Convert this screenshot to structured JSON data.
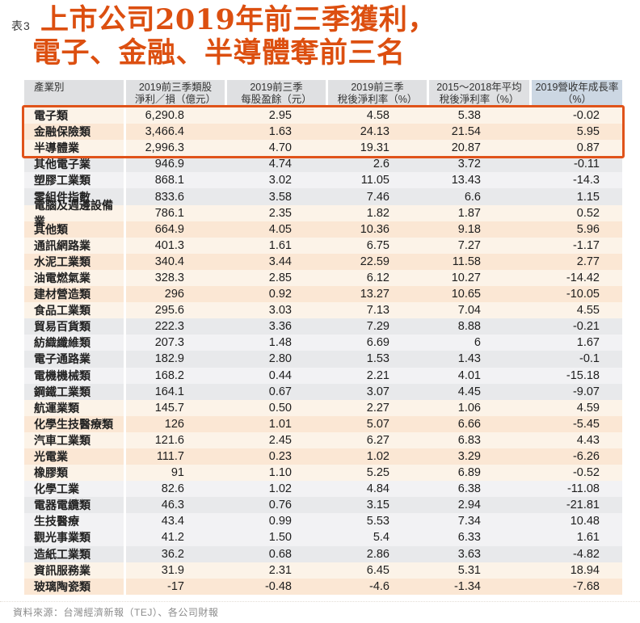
{
  "doc": {
    "table_label": "表3",
    "title_line1": "上市公司2019年前三季獲利，",
    "title_line2": "電子、金融、半導體奪前三名"
  },
  "colors": {
    "title_accent": "#dc4f10",
    "highlight_border": "#e0531a",
    "header_bg": "#dfe0e2",
    "header_last_col_bg": "#ccd7e3",
    "row_tones": {
      "cream": "#fcf3e8",
      "peach": "#fbe7d4",
      "gray": "#e8e9eb",
      "lightgray": "#f2f2f4"
    }
  },
  "chart_data": {
    "type": "table",
    "title": "上市公司2019年前三季獲利，電子、金融、半導體奪前三名",
    "columns": [
      {
        "lines": [
          "產業別"
        ]
      },
      {
        "lines": [
          "2019前三季類股",
          "淨利／損（億元）"
        ]
      },
      {
        "lines": [
          "2019前三季",
          "每股盈餘（元）"
        ]
      },
      {
        "lines": [
          "2019前三季",
          "稅後淨利率（%）"
        ]
      },
      {
        "lines": [
          "2015～2018年平均",
          "稅後淨利率（%）"
        ]
      },
      {
        "lines": [
          "2019營收年成長率",
          "（%）"
        ]
      }
    ],
    "highlight_note": "前三名（電子類、金融保險類、半導體業）以橘色框標示",
    "rows": [
      {
        "name": "電子類",
        "values": [
          "6,290.8",
          "2.95",
          "4.58",
          "5.38",
          "-0.02"
        ],
        "tone": "cream",
        "highlighted": true
      },
      {
        "name": "金融保險類",
        "values": [
          "3,466.4",
          "1.63",
          "24.13",
          "21.54",
          "5.95"
        ],
        "tone": "peach",
        "highlighted": true
      },
      {
        "name": "半導體業",
        "values": [
          "2,996.3",
          "4.70",
          "19.31",
          "20.87",
          "0.87"
        ],
        "tone": "cream",
        "highlighted": true
      },
      {
        "name": "其他電子業",
        "values": [
          "946.9",
          "4.74",
          "2.6",
          "3.72",
          "-0.11"
        ],
        "tone": "gray",
        "highlighted": false
      },
      {
        "name": "塑膠工業類",
        "values": [
          "868.1",
          "3.02",
          "11.05",
          "13.43",
          "-14.3"
        ],
        "tone": "lightgray",
        "highlighted": false
      },
      {
        "name": "零組件指數",
        "values": [
          "833.6",
          "3.58",
          "7.46",
          "6.6",
          "1.15"
        ],
        "tone": "gray",
        "highlighted": false
      },
      {
        "name": "電腦及週邊設備業",
        "values": [
          "786.1",
          "2.35",
          "1.82",
          "1.87",
          "0.52"
        ],
        "tone": "cream",
        "highlighted": false
      },
      {
        "name": "其他類",
        "values": [
          "664.9",
          "4.05",
          "10.36",
          "9.18",
          "5.96"
        ],
        "tone": "peach",
        "highlighted": false
      },
      {
        "name": "通訊網路業",
        "values": [
          "401.3",
          "1.61",
          "6.75",
          "7.27",
          "-1.17"
        ],
        "tone": "cream",
        "highlighted": false
      },
      {
        "name": "水泥工業類",
        "values": [
          "340.4",
          "3.44",
          "22.59",
          "11.58",
          "2.77"
        ],
        "tone": "peach",
        "highlighted": false
      },
      {
        "name": "油電燃氣業",
        "values": [
          "328.3",
          "2.85",
          "6.12",
          "10.27",
          "-14.42"
        ],
        "tone": "cream",
        "highlighted": false
      },
      {
        "name": "建材營造類",
        "values": [
          "296",
          "0.92",
          "13.27",
          "10.65",
          "-10.05"
        ],
        "tone": "peach",
        "highlighted": false
      },
      {
        "name": "食品工業類",
        "values": [
          "295.6",
          "3.03",
          "7.13",
          "7.04",
          "4.55"
        ],
        "tone": "cream",
        "highlighted": false
      },
      {
        "name": "貿易百貨類",
        "values": [
          "222.3",
          "3.36",
          "7.29",
          "8.88",
          "-0.21"
        ],
        "tone": "gray",
        "highlighted": false
      },
      {
        "name": "紡織纖維類",
        "values": [
          "207.3",
          "1.48",
          "6.69",
          "6",
          "1.67"
        ],
        "tone": "lightgray",
        "highlighted": false
      },
      {
        "name": "電子通路業",
        "values": [
          "182.9",
          "2.80",
          "1.53",
          "1.43",
          "-0.1"
        ],
        "tone": "gray",
        "highlighted": false
      },
      {
        "name": "電機機械類",
        "values": [
          "168.2",
          "0.44",
          "2.21",
          "4.01",
          "-15.18"
        ],
        "tone": "lightgray",
        "highlighted": false
      },
      {
        "name": "鋼鐵工業類",
        "values": [
          "164.1",
          "0.67",
          "3.07",
          "4.45",
          "-9.07"
        ],
        "tone": "gray",
        "highlighted": false
      },
      {
        "name": "航運業類",
        "values": [
          "145.7",
          "0.50",
          "2.27",
          "1.06",
          "4.59"
        ],
        "tone": "cream",
        "highlighted": false
      },
      {
        "name": "化學生技醫療類",
        "values": [
          "126",
          "1.01",
          "5.07",
          "6.66",
          "-5.45"
        ],
        "tone": "peach",
        "highlighted": false
      },
      {
        "name": "汽車工業類",
        "values": [
          "121.6",
          "2.45",
          "6.27",
          "6.83",
          "4.43"
        ],
        "tone": "cream",
        "highlighted": false
      },
      {
        "name": "光電業",
        "values": [
          "111.7",
          "0.23",
          "1.02",
          "3.29",
          "-6.26"
        ],
        "tone": "peach",
        "highlighted": false
      },
      {
        "name": "橡膠類",
        "values": [
          "91",
          "1.10",
          "5.25",
          "6.89",
          "-0.52"
        ],
        "tone": "cream",
        "highlighted": false
      },
      {
        "name": "化學工業",
        "values": [
          "82.6",
          "1.02",
          "4.84",
          "6.38",
          "-11.08"
        ],
        "tone": "lightgray",
        "highlighted": false
      },
      {
        "name": "電器電纜類",
        "values": [
          "46.3",
          "0.76",
          "3.15",
          "2.94",
          "-21.81"
        ],
        "tone": "gray",
        "highlighted": false
      },
      {
        "name": "生技醫療",
        "values": [
          "43.4",
          "0.99",
          "5.53",
          "7.34",
          "10.48"
        ],
        "tone": "lightgray",
        "highlighted": false
      },
      {
        "name": "觀光事業類",
        "values": [
          "41.2",
          "1.50",
          "5.4",
          "6.33",
          "1.61"
        ],
        "tone": "lightgray",
        "highlighted": false
      },
      {
        "name": "造紙工業類",
        "values": [
          "36.2",
          "0.68",
          "2.86",
          "3.63",
          "-4.82"
        ],
        "tone": "gray",
        "highlighted": false
      },
      {
        "name": "資訊服務業",
        "values": [
          "31.9",
          "2.31",
          "6.45",
          "5.31",
          "18.94"
        ],
        "tone": "cream",
        "highlighted": false
      },
      {
        "name": "玻璃陶瓷類",
        "values": [
          "-17",
          "-0.48",
          "-4.6",
          "-1.34",
          "-7.68"
        ],
        "tone": "peach",
        "highlighted": false
      }
    ]
  },
  "footer": {
    "source": "資料來源：台灣經濟新報（TEJ）、各公司財報"
  }
}
